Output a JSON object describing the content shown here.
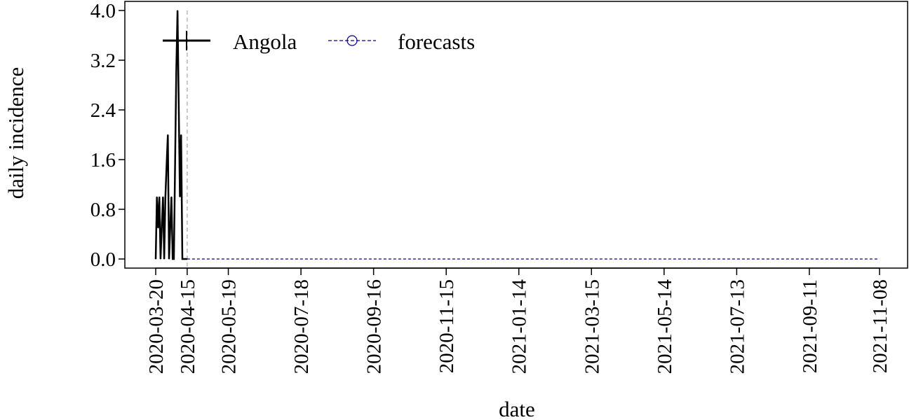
{
  "chart_data": {
    "type": "line",
    "xlabel": "date",
    "ylabel": "daily incidence",
    "ylim": [
      0,
      4.0
    ],
    "xlim": [
      "2020-03-20",
      "2021-11-08"
    ],
    "y_ticks": [
      "0.0",
      "0.8",
      "1.6",
      "2.4",
      "3.2",
      "4.0"
    ],
    "x_ticks": [
      "2020-03-20",
      "2020-04-15",
      "2020-05-19",
      "2020-07-18",
      "2020-09-16",
      "2020-11-15",
      "2021-01-14",
      "2021-03-15",
      "2021-05-14",
      "2021-07-13",
      "2021-09-11",
      "2021-11-08"
    ],
    "forecast_start": "2020-04-15",
    "legend": {
      "placement": "top-left",
      "entries": [
        "Angola",
        "forecasts"
      ]
    },
    "colors": {
      "observed": "#000000",
      "forecast": "#00008b",
      "vline": "#bbbbbb"
    },
    "series": [
      {
        "name": "Angola",
        "style": "solid",
        "x": [
          "2020-03-20",
          "2020-03-21",
          "2020-03-22",
          "2020-03-23",
          "2020-03-24",
          "2020-03-25",
          "2020-03-26",
          "2020-03-27",
          "2020-03-28",
          "2020-03-29",
          "2020-03-30",
          "2020-03-31",
          "2020-04-01",
          "2020-04-02",
          "2020-04-03",
          "2020-04-04",
          "2020-04-05",
          "2020-04-06",
          "2020-04-07",
          "2020-04-08",
          "2020-04-09",
          "2020-04-10",
          "2020-04-11",
          "2020-04-12",
          "2020-04-13",
          "2020-04-14",
          "2020-04-15"
        ],
        "values": [
          0,
          1,
          0.5,
          1,
          0,
          0.5,
          1,
          0,
          1,
          1.5,
          2,
          0,
          0.5,
          1,
          0,
          0,
          1.5,
          3.0,
          4.0,
          2.5,
          1.0,
          2.0,
          0,
          0,
          0,
          0,
          0
        ]
      },
      {
        "name": "forecasts",
        "style": "dashed",
        "x": [
          "2020-04-15",
          "2021-11-08"
        ],
        "values": [
          0,
          0
        ]
      }
    ]
  }
}
